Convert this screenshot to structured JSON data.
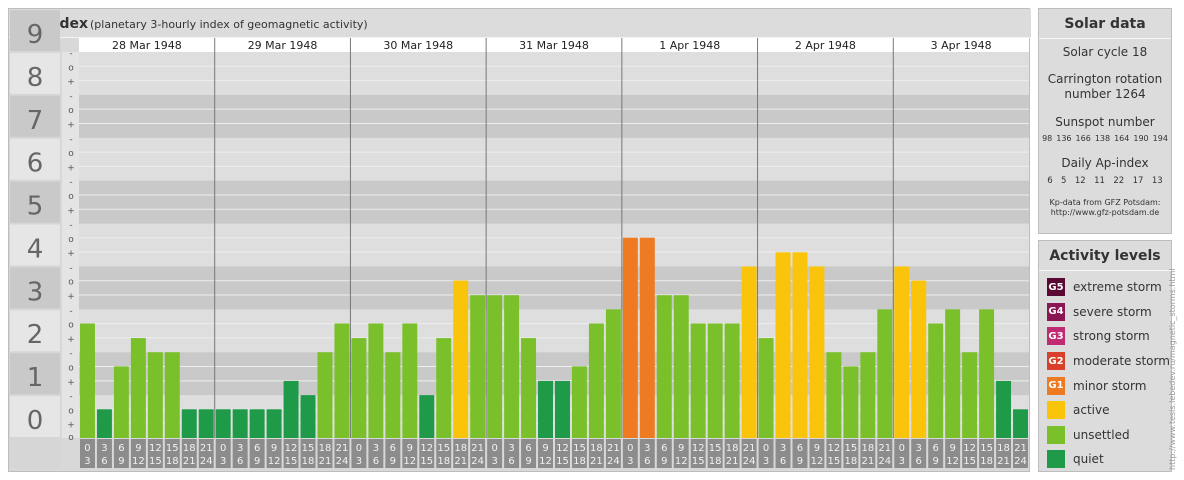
{
  "header": {
    "title": "Kp-index",
    "subtitle": "(planetary 3-hourly index of geomagnetic activity)"
  },
  "chart_data": {
    "type": "bar",
    "days": [
      "28 Mar 1948",
      "29 Mar 1948",
      "30 Mar 1948",
      "31 Mar 1948",
      "1 Apr 1948",
      "2 Apr 1948",
      "3 Apr 1948"
    ],
    "hour_labels_top": [
      "0",
      "3",
      "6",
      "9",
      "12",
      "15",
      "18",
      "21"
    ],
    "hour_labels_bottom": [
      "3",
      "6",
      "9",
      "12",
      "15",
      "18",
      "21",
      "24"
    ],
    "y_ticks": [
      "0",
      "1",
      "2",
      "3",
      "4",
      "5",
      "6",
      "7",
      "8",
      "9"
    ],
    "minor_marks": [
      "+",
      "o",
      "-"
    ],
    "ylim": [
      0,
      9
    ],
    "values": [
      [
        2.67,
        0.67,
        1.67,
        2.33,
        2.0,
        2.0,
        0.67,
        0.67
      ],
      [
        0.67,
        0.67,
        0.67,
        0.67,
        1.33,
        1.0,
        2.0,
        2.67
      ],
      [
        2.33,
        2.67,
        2.0,
        2.67,
        1.0,
        2.33,
        3.67,
        3.33
      ],
      [
        3.33,
        3.33,
        2.33,
        1.33,
        1.33,
        1.67,
        2.67,
        3.0
      ],
      [
        4.67,
        4.67,
        3.33,
        3.33,
        2.67,
        2.67,
        2.67,
        4.0
      ],
      [
        2.33,
        4.33,
        4.33,
        4.0,
        2.0,
        1.67,
        2.0,
        3.0
      ],
      [
        4.0,
        3.67,
        2.67,
        3.0,
        2.0,
        3.0,
        1.33,
        0.67
      ]
    ],
    "colors": {
      "quiet": "#1e9a48",
      "unsettled": "#7ac02a",
      "active": "#fac40a",
      "minor": "#ee7a22",
      "moderate": "#d9402b",
      "strong": "#c02a70",
      "severe": "#8c1553",
      "extreme": "#5a0a32"
    }
  },
  "solar": {
    "title": "Solar data",
    "cycle": "Solar cycle 18",
    "carrington_line1": "Carrington rotation",
    "carrington_line2": "number 1264",
    "sunspot_title": "Sunspot number",
    "sunspot_values": [
      "98",
      "136",
      "166",
      "138",
      "164",
      "190",
      "194"
    ],
    "ap_title": "Daily Ap-index",
    "ap_values": [
      "6",
      "5",
      "12",
      "11",
      "22",
      "17",
      "13"
    ],
    "source_line1": "Kp-data from GFZ Potsdam:",
    "source_line2": "http://www.gfz-potsdam.de"
  },
  "activity": {
    "title": "Activity levels",
    "items": [
      {
        "code": "G5",
        "label": "extreme storm",
        "color": "#5a0a32"
      },
      {
        "code": "G4",
        "label": "severe storm",
        "color": "#8c1553"
      },
      {
        "code": "G3",
        "label": "strong storm",
        "color": "#c02a70"
      },
      {
        "code": "G2",
        "label": "moderate storm",
        "color": "#d9402b"
      },
      {
        "code": "G1",
        "label": "minor storm",
        "color": "#ee7a22"
      },
      {
        "code": "",
        "label": "active",
        "color": "#fac40a"
      },
      {
        "code": "",
        "label": "unsettled",
        "color": "#7ac02a"
      },
      {
        "code": "",
        "label": "quiet",
        "color": "#1e9a48"
      }
    ]
  },
  "side_url": "http://www.tesis.lebedev.ru/magnetic_storms.html"
}
